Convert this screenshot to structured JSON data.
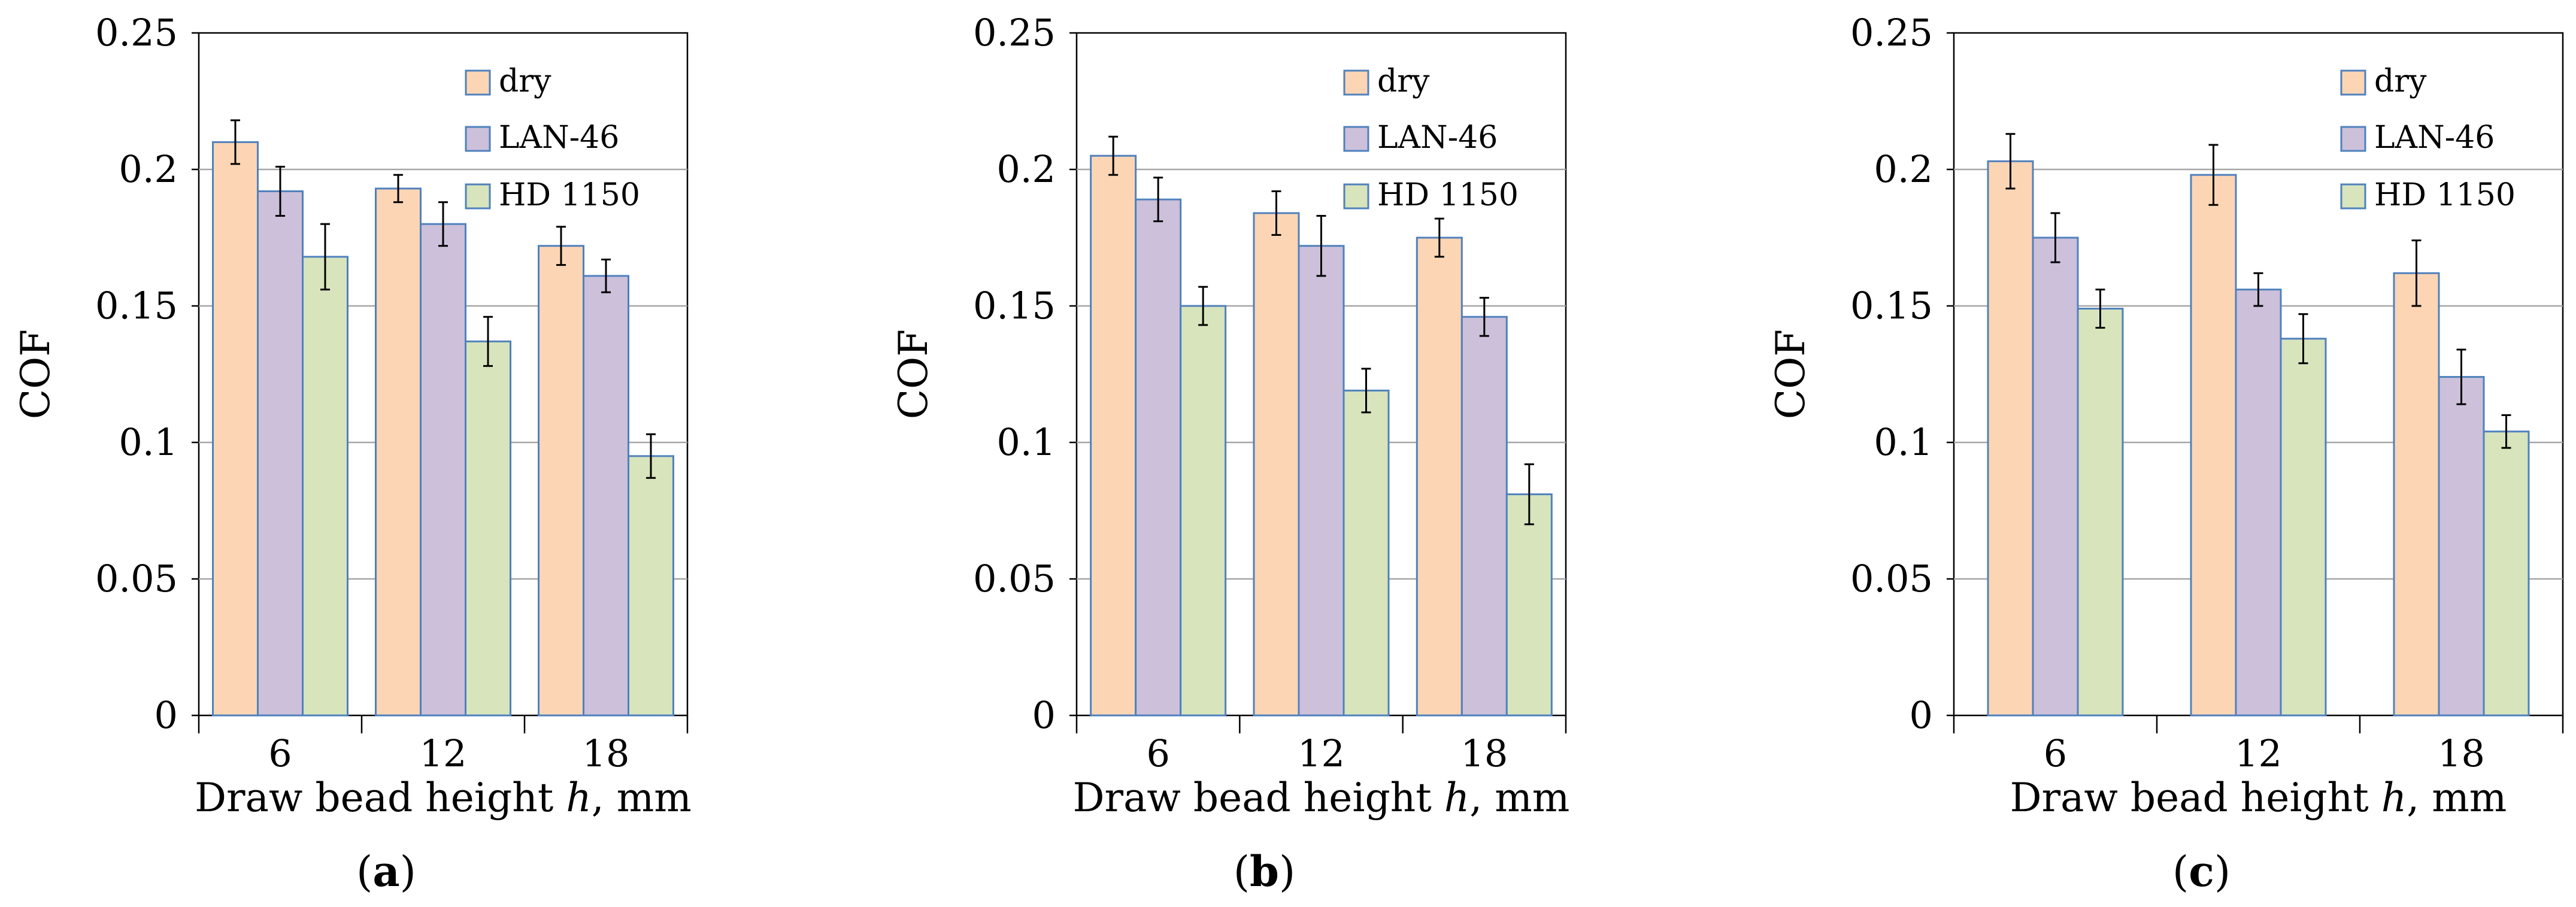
{
  "colors": {
    "dry_fill": "#fcd5b4",
    "lan46_fill": "#ccc0da",
    "hd1150_fill": "#d7e4bc",
    "bar_stroke": "#4f81bd",
    "grid": "#a6a6a6",
    "axis": "#000000"
  },
  "chart_data": [
    {
      "type": "bar",
      "panel_label": "a",
      "xlabel": "Draw bead height",
      "xlabel_var": "h",
      "xlabel_unit": ", mm",
      "ylabel": "COF",
      "ylim": [
        0,
        0.25
      ],
      "yticks": [
        0,
        0.05,
        0.1,
        0.15,
        0.2,
        0.25
      ],
      "ytick_labels": [
        "0",
        "0.05",
        "0.1",
        "0.15",
        "0.2",
        "0.25"
      ],
      "categories": [
        "6",
        "12",
        "18"
      ],
      "legend_position": "top-right",
      "series": [
        {
          "name": "dry",
          "values": [
            0.21,
            0.193,
            0.172
          ],
          "errors": [
            0.008,
            0.005,
            0.007
          ]
        },
        {
          "name": "LAN-46",
          "values": [
            0.192,
            0.18,
            0.161
          ],
          "errors": [
            0.009,
            0.008,
            0.006
          ]
        },
        {
          "name": "HD 1150",
          "values": [
            0.168,
            0.137,
            0.095
          ],
          "errors": [
            0.012,
            0.009,
            0.008
          ]
        }
      ]
    },
    {
      "type": "bar",
      "panel_label": "b",
      "xlabel": "Draw bead height",
      "xlabel_var": "h",
      "xlabel_unit": ", mm",
      "ylabel": "COF",
      "ylim": [
        0,
        0.25
      ],
      "yticks": [
        0,
        0.05,
        0.1,
        0.15,
        0.2,
        0.25
      ],
      "ytick_labels": [
        "0",
        "0.05",
        "0.1",
        "0.15",
        "0.2",
        "0.25"
      ],
      "categories": [
        "6",
        "12",
        "18"
      ],
      "legend_position": "top-right",
      "series": [
        {
          "name": "dry",
          "values": [
            0.205,
            0.184,
            0.175
          ],
          "errors": [
            0.007,
            0.008,
            0.007
          ]
        },
        {
          "name": "LAN-46",
          "values": [
            0.189,
            0.172,
            0.146
          ],
          "errors": [
            0.008,
            0.011,
            0.007
          ]
        },
        {
          "name": "HD 1150",
          "values": [
            0.15,
            0.119,
            0.081
          ],
          "errors": [
            0.007,
            0.008,
            0.011
          ]
        }
      ]
    },
    {
      "type": "bar",
      "panel_label": "c",
      "xlabel": "Draw bead height",
      "xlabel_var": "h",
      "xlabel_unit": ", mm",
      "ylabel": "COF",
      "ylim": [
        0,
        0.25
      ],
      "yticks": [
        0,
        0.05,
        0.1,
        0.15,
        0.2,
        0.25
      ],
      "ytick_labels": [
        "0",
        "0.05",
        "0.1",
        "0.15",
        "0.2",
        "0.25"
      ],
      "categories": [
        "6",
        "12",
        "18"
      ],
      "legend_position": "top-right",
      "series": [
        {
          "name": "dry",
          "values": [
            0.203,
            0.198,
            0.162
          ],
          "errors": [
            0.01,
            0.011,
            0.012
          ]
        },
        {
          "name": "LAN-46",
          "values": [
            0.175,
            0.156,
            0.124
          ],
          "errors": [
            0.009,
            0.006,
            0.01
          ]
        },
        {
          "name": "HD 1150",
          "values": [
            0.149,
            0.138,
            0.104
          ],
          "errors": [
            0.007,
            0.009,
            0.006
          ]
        }
      ]
    }
  ]
}
